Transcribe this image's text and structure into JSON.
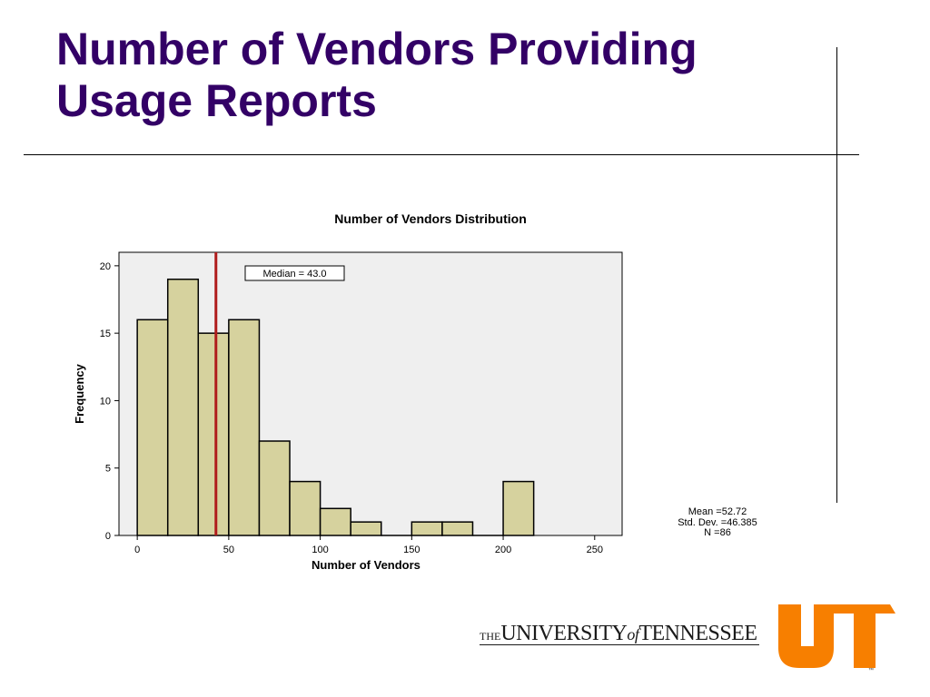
{
  "slide": {
    "title_line1": "Number of Vendors Providing",
    "title_line2": "Usage Reports"
  },
  "chart_data": {
    "type": "bar",
    "title": "Number of Vendors Distribution",
    "xlabel": "Number of Vendors",
    "ylabel": "Frequency",
    "bin_edges": [
      0,
      16.67,
      33.33,
      50,
      66.67,
      83.33,
      100,
      116.67,
      133.33,
      150,
      166.67,
      183.33,
      200,
      216.67
    ],
    "values": [
      16,
      19,
      15,
      16,
      7,
      4,
      2,
      1,
      0,
      1,
      1,
      0,
      4
    ],
    "xlim": [
      -10,
      265
    ],
    "ylim": [
      0,
      21
    ],
    "xticks": [
      0,
      50,
      100,
      150,
      200,
      250
    ],
    "yticks": [
      0,
      5,
      10,
      15,
      20
    ],
    "median_value": 43.0,
    "median_label": "Median = 43.0",
    "stats": [
      "Mean =52.72",
      "Std. Dev. =46.385",
      "N =86"
    ],
    "bar_color": "#d6d29e",
    "plot_background": "#efefef",
    "median_color": "#b01c1c",
    "grid": false
  },
  "logo": {
    "the": "THE",
    "university": "UNIVERSITY",
    "of": "of",
    "tennessee": "TENNESSEE",
    "mark": "UT",
    "tm": "™",
    "color": "#f77f00"
  }
}
